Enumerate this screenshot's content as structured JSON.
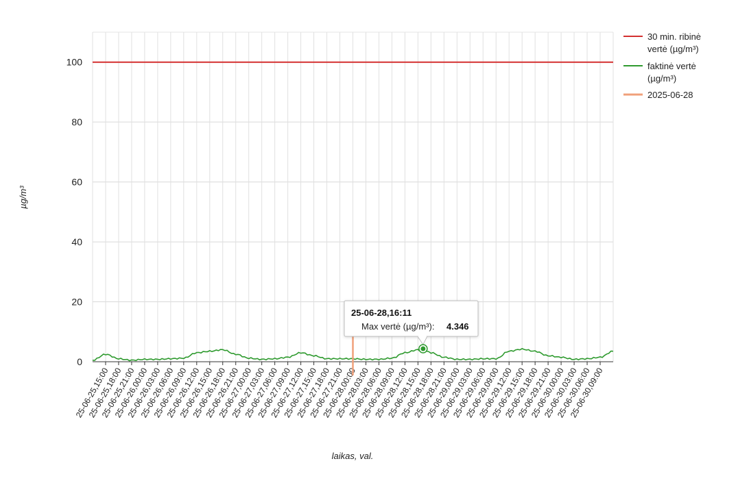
{
  "chart_data": {
    "type": "line",
    "ylabel": "µg/m³",
    "xlabel": "laikas, val.",
    "ylim": [
      0,
      110
    ],
    "yticks": [
      0,
      20,
      40,
      60,
      80,
      100
    ],
    "grid": true,
    "legend_position": "top-right",
    "x_start": "2025-06-25 12:00",
    "x_end": "2025-06-30 12:00",
    "xtick_labels": [
      "25-06-25,15:00",
      "25-06-25,18:00",
      "25-06-25,21:00",
      "25-06-26,00:00",
      "25-06-26,03:00",
      "25-06-26,06:00",
      "25-06-26,09:00",
      "25-06-26,12:00",
      "25-06-26,15:00",
      "25-06-26,18:00",
      "25-06-26,21:00",
      "25-06-27,00:00",
      "25-06-27,03:00",
      "25-06-27,06:00",
      "25-06-27,09:00",
      "25-06-27,12:00",
      "25-06-27,15:00",
      "25-06-27,18:00",
      "25-06-27,21:00",
      "25-06-28,00:00",
      "25-06-28,03:00",
      "25-06-28,06:00",
      "25-06-28,09:00",
      "25-06-28,12:00",
      "25-06-28,15:00",
      "25-06-28,18:00",
      "25-06-28,21:00",
      "25-06-29,00:00",
      "25-06-29,03:00",
      "25-06-29,06:00",
      "25-06-29,09:00",
      "25-06-29,12:00",
      "25-06-29,15:00",
      "25-06-29,18:00",
      "25-06-29,21:00",
      "25-06-30,00:00",
      "25-06-30,03:00",
      "25-06-30,06:00",
      "25-06-30,09:00"
    ],
    "series": [
      {
        "name": "30 min. ribinė vertė (µg/m³)",
        "color": "#d32f2f",
        "x": [
          "2025-06-25 12:00",
          "2025-06-30 12:00"
        ],
        "y": [
          100,
          100
        ]
      },
      {
        "name": "faktinė vertė (µg/m³)",
        "color": "#2e9a2e",
        "x": [
          "2025-06-25 12:00",
          "2025-06-25 15:00",
          "2025-06-25 18:00",
          "2025-06-25 21:00",
          "2025-06-26 00:00",
          "2025-06-26 03:00",
          "2025-06-26 06:00",
          "2025-06-26 09:00",
          "2025-06-26 12:00",
          "2025-06-26 15:00",
          "2025-06-26 18:00",
          "2025-06-26 21:00",
          "2025-06-27 00:00",
          "2025-06-27 03:00",
          "2025-06-27 06:00",
          "2025-06-27 09:00",
          "2025-06-27 12:00",
          "2025-06-27 15:00",
          "2025-06-27 18:00",
          "2025-06-27 21:00",
          "2025-06-28 00:00",
          "2025-06-28 03:00",
          "2025-06-28 06:00",
          "2025-06-28 09:00",
          "2025-06-28 12:00",
          "2025-06-28 15:00",
          "2025-06-28 16:11",
          "2025-06-28 18:00",
          "2025-06-28 21:00",
          "2025-06-29 00:00",
          "2025-06-29 03:00",
          "2025-06-29 06:00",
          "2025-06-29 09:00",
          "2025-06-29 12:00",
          "2025-06-29 15:00",
          "2025-06-29 18:00",
          "2025-06-29 21:00",
          "2025-06-30 00:00",
          "2025-06-30 03:00",
          "2025-06-30 06:00",
          "2025-06-30 09:00",
          "2025-06-30 12:00"
        ],
        "y": [
          0.5,
          2.5,
          1.0,
          0.5,
          0.8,
          0.8,
          1.0,
          1.2,
          3.0,
          3.5,
          4.0,
          2.5,
          1.2,
          0.8,
          1.0,
          1.5,
          3.0,
          2.0,
          1.0,
          1.0,
          1.0,
          0.8,
          0.8,
          1.2,
          3.0,
          4.0,
          4.346,
          3.0,
          1.5,
          0.8,
          0.8,
          1.0,
          1.0,
          3.5,
          4.2,
          3.5,
          2.0,
          1.5,
          0.8,
          1.0,
          1.5,
          3.5
        ]
      },
      {
        "name": "2025-06-28",
        "color": "#f0a07a",
        "x": [
          "2025-06-28 00:00",
          "2025-06-28 00:00"
        ],
        "y": [
          0,
          10
        ]
      }
    ],
    "tooltip": {
      "title": "25-06-28,16:11",
      "label": "Max vertė (µg/m³):",
      "value": "4.346",
      "x": "2025-06-28 16:11",
      "y": 4.346
    }
  }
}
